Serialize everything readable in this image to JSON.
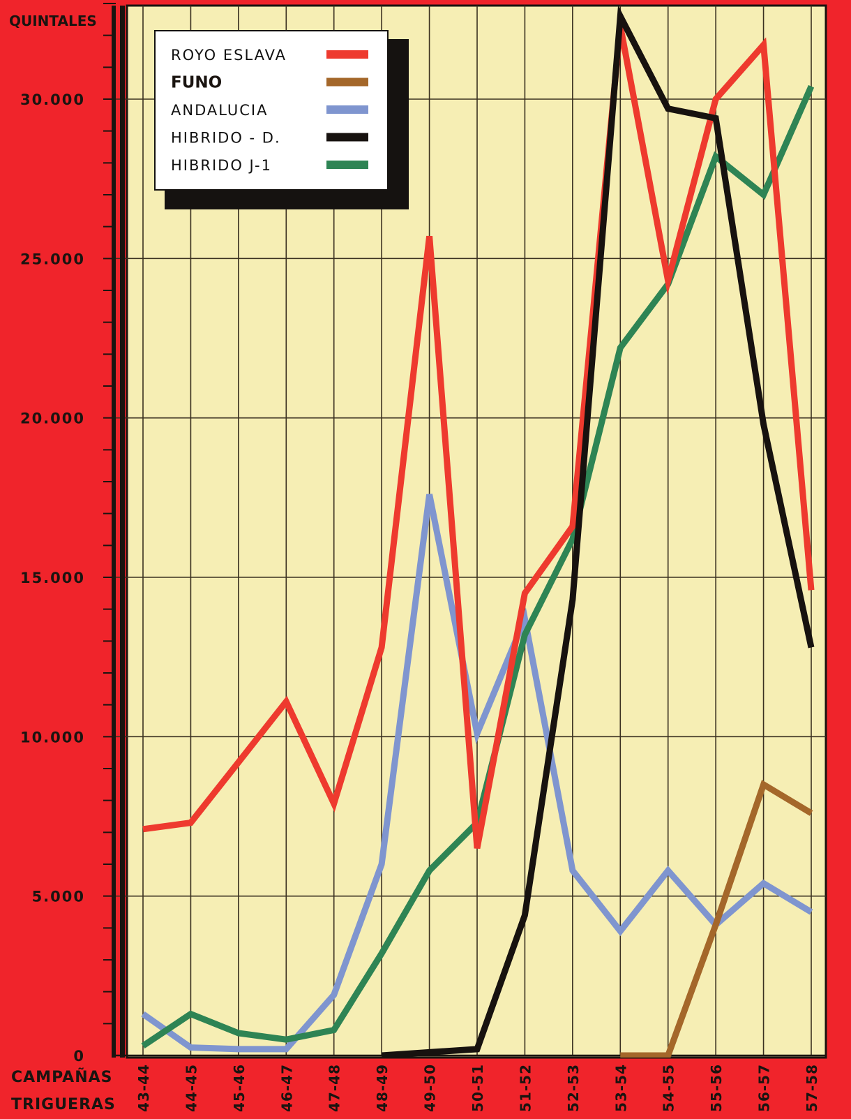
{
  "chart_data": {
    "type": "line",
    "ylabel": "QUINTALES",
    "xlabel_line1": "CAMPAÑAS",
    "xlabel_line2": "TRIGUERAS",
    "ylim": [
      0,
      33000
    ],
    "y_tick_values": [
      0,
      5000,
      10000,
      15000,
      20000,
      25000,
      30000
    ],
    "y_tick_labels": [
      "0",
      "5.000",
      "10.000",
      "15.000",
      "20.000",
      "25.000",
      "30.000"
    ],
    "categories": [
      "43-44",
      "44-45",
      "45-46",
      "46-47",
      "47-48",
      "48-49",
      "49-50",
      "50-51",
      "51-52",
      "52-53",
      "53-54",
      "54-55",
      "55-56",
      "56-57",
      "57-58"
    ],
    "grid": true,
    "legend_position": "top-left",
    "series": [
      {
        "name": "ROYO ESLAVA",
        "color": "#ee3a2e",
        "values": [
          7100,
          7300,
          9200,
          11100,
          7900,
          12800,
          25700,
          6500,
          14500,
          16600,
          32300,
          24300,
          30000,
          31700,
          14600
        ]
      },
      {
        "name": "FUNO",
        "color": "#a4672a",
        "values": [
          null,
          null,
          null,
          null,
          null,
          null,
          null,
          null,
          null,
          null,
          0,
          0,
          4100,
          8500,
          7600
        ]
      },
      {
        "name": "ANDALUCIA",
        "color": "#7f95cf",
        "values": [
          1300,
          250,
          200,
          200,
          1900,
          6000,
          17600,
          10100,
          13700,
          5800,
          3900,
          5800,
          4100,
          5400,
          4500
        ]
      },
      {
        "name": "HIBRIDO - D.",
        "color": "#17120f",
        "values": [
          null,
          null,
          null,
          null,
          null,
          0,
          100,
          200,
          4400,
          14300,
          32600,
          29700,
          29400,
          19800,
          12800
        ]
      },
      {
        "name": "HIBRIDO J-1",
        "color": "#2e8454",
        "values": [
          300,
          1300,
          700,
          500,
          800,
          3200,
          5800,
          7300,
          13200,
          16200,
          22200,
          24200,
          28200,
          27000,
          30400
        ]
      }
    ]
  }
}
